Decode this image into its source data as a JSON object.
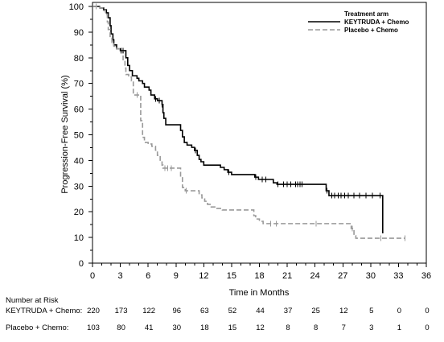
{
  "chart_data": {
    "type": "line",
    "step": true,
    "xlabel": "Time in Months",
    "ylabel": "Progression-Free Survival (%)",
    "xlim": [
      0,
      36
    ],
    "ylim": [
      0,
      100
    ],
    "xticks": [
      0,
      3,
      6,
      9,
      12,
      15,
      18,
      21,
      24,
      27,
      30,
      33,
      36
    ],
    "yticks": [
      0,
      10,
      20,
      30,
      40,
      50,
      60,
      70,
      80,
      90,
      100
    ],
    "grid": false,
    "legend": {
      "title": "Treatment arm",
      "position": "top-right"
    },
    "series": [
      {
        "name": "KEYTRUDA + Chemo",
        "color": "#000000",
        "line_style": "solid",
        "x": [
          0,
          0.8,
          1.2,
          1.5,
          1.7,
          1.9,
          2,
          2.2,
          2.3,
          2.6,
          3,
          3.6,
          3.8,
          4,
          4.3,
          4.8,
          5,
          5.4,
          5.6,
          6.1,
          6.3,
          6.7,
          7,
          7.5,
          7.6,
          7.7,
          7.9,
          9.5,
          9.7,
          9.9,
          10.2,
          10.7,
          11,
          11.3,
          11.5,
          11.7,
          12,
          13.8,
          14.2,
          14.6,
          15,
          17.5,
          17.9,
          19.5,
          19.9,
          25.2,
          25.5,
          31.3
        ],
        "y": [
          100,
          99.4,
          98.7,
          97.5,
          95.6,
          92.5,
          89.3,
          87,
          85,
          83.5,
          82.8,
          80,
          77,
          75,
          73,
          72,
          71,
          70,
          68.6,
          67.4,
          65.5,
          64,
          63.3,
          61.8,
          58.6,
          56.4,
          53.9,
          51.7,
          49.2,
          47,
          46,
          45.1,
          43.9,
          42,
          40.4,
          39.5,
          38.2,
          37.3,
          36.4,
          35.4,
          34.5,
          33.5,
          32.6,
          31.3,
          30.7,
          28.2,
          26.3,
          11.6
        ],
        "end_x": 31.3,
        "censored_x": [
          0.4,
          3.1,
          3.3,
          6.8,
          7.2,
          7.5,
          11.1,
          14.7,
          17.6,
          18.3,
          18.7,
          20,
          20.6,
          21,
          21.4,
          21.9,
          22.1,
          22.4,
          22.6,
          25.3,
          25.8,
          26.1,
          26.5,
          26.8,
          27.2,
          27.6,
          28.2,
          28.8,
          29.5,
          30.2,
          31
        ],
        "censored_y": [
          100,
          82.8,
          82.8,
          64,
          63.3,
          61.8,
          43.9,
          35.4,
          33.5,
          32.6,
          32.6,
          30.7,
          30.7,
          30.7,
          30.7,
          30.7,
          30.7,
          30.7,
          30.7,
          28.2,
          26.3,
          26.3,
          26.3,
          26.3,
          26.3,
          26.3,
          26.3,
          26.3,
          26.3,
          26.3,
          26.3
        ]
      },
      {
        "name": "Placebo + Chemo",
        "color": "#999999",
        "line_style": "dashed",
        "x": [
          0,
          0.8,
          1.1,
          1.4,
          1.6,
          1.7,
          1.9,
          2.1,
          2.3,
          2.6,
          2.9,
          3.3,
          3.5,
          3.6,
          3.9,
          4.2,
          4.4,
          5.2,
          5.4,
          5.6,
          6,
          6.4,
          6.8,
          7,
          7.3,
          7.5,
          7.6,
          9.5,
          9.7,
          10,
          11.5,
          11.8,
          12.1,
          12.4,
          12.8,
          13.3,
          14,
          17.4,
          17.6,
          18,
          18.4,
          27.9,
          28.2,
          28.4
        ],
        "y": [
          100,
          99.4,
          98.4,
          96.9,
          94,
          91,
          88,
          86,
          84.5,
          83.5,
          82.5,
          79,
          76,
          73.5,
          72.5,
          71,
          65.5,
          55.5,
          49,
          47,
          46.4,
          45.5,
          44,
          42,
          39.8,
          38.2,
          37,
          33.5,
          29.5,
          28.2,
          26.6,
          25.4,
          24.1,
          22.9,
          21.9,
          21.3,
          20.7,
          18.5,
          17.2,
          16.3,
          15.4,
          13.5,
          10.7,
          9.7
        ],
        "end_x": 33.7,
        "censored_x": [
          0.4,
          4.8,
          7.8,
          8.1,
          8.5,
          10.1,
          19.2,
          19.8,
          24.1,
          28,
          31.1,
          33.7
        ],
        "censored_y": [
          100,
          65.5,
          37,
          37,
          37,
          28.2,
          15.4,
          15.4,
          15.4,
          13.5,
          9.7,
          9.7
        ]
      }
    ],
    "risk_table": {
      "title": "Number at Risk",
      "times": [
        0,
        3,
        6,
        9,
        12,
        15,
        18,
        21,
        24,
        27,
        30,
        33,
        36
      ],
      "rows": [
        {
          "label": "KEYTRUDA + Chemo:",
          "values": [
            220,
            173,
            122,
            96,
            63,
            52,
            44,
            37,
            25,
            12,
            5,
            0,
            0
          ]
        },
        {
          "label": "Placebo + Chemo:",
          "values": [
            103,
            80,
            41,
            30,
            18,
            15,
            12,
            8,
            8,
            7,
            3,
            1,
            0
          ]
        }
      ]
    }
  }
}
